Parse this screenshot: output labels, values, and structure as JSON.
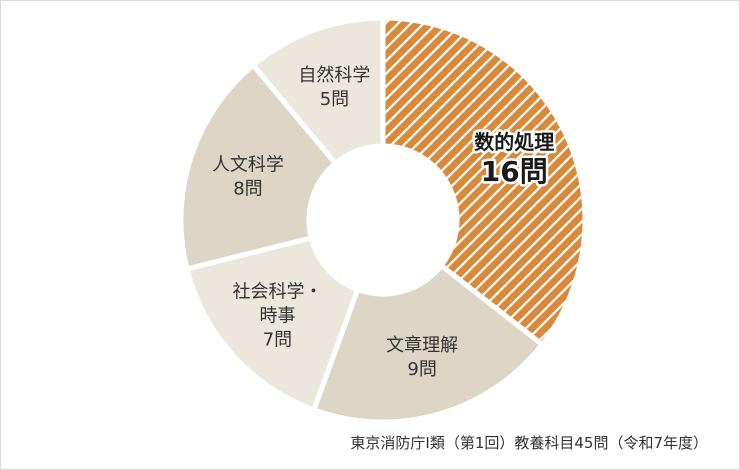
{
  "chart_data": {
    "type": "pie",
    "donut": true,
    "categories": [
      "数的処理",
      "文章理解",
      "社会科学・時事",
      "人文科学",
      "自然科学"
    ],
    "values": [
      16,
      9,
      7,
      8,
      5
    ],
    "value_labels": [
      "16問",
      "9問",
      "7問",
      "8問",
      "5問"
    ],
    "label_lines": [
      [
        "数的処理",
        "16問"
      ],
      [
        "文章理解",
        "9問"
      ],
      [
        "社会科学・",
        "時事",
        "7問"
      ],
      [
        "人文科学",
        "8問"
      ],
      [
        "自然科学",
        "5問"
      ]
    ],
    "colors": [
      "#d9893a",
      "#ddd6c6",
      "#ebe7dc",
      "#ddd6c6",
      "#ebe7dc"
    ],
    "highlight": "数的処理",
    "total": 45,
    "caption": "東京消防庁Ⅰ類（第1回）教養科目45問（令和7年度）"
  }
}
